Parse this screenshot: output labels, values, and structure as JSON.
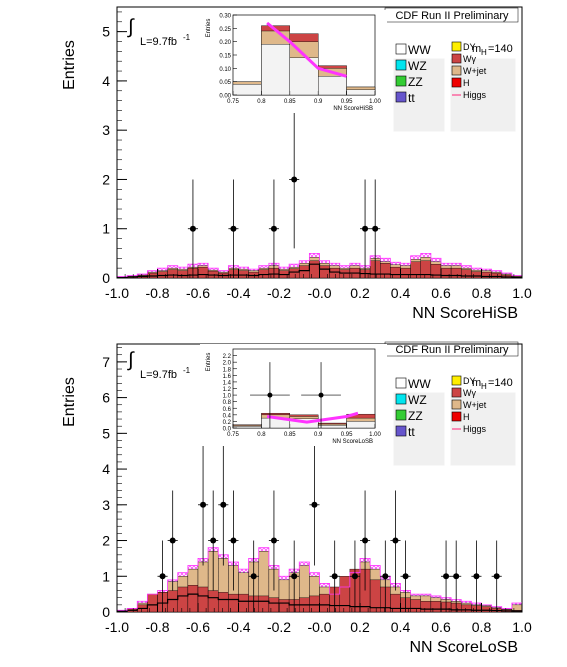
{
  "chart_data": [
    {
      "type": "bar",
      "panel": "top",
      "title": "CDF Run II Preliminary",
      "xlabel": "NN ScoreHiSB",
      "ylabel": "Entries",
      "xlim": [
        -1.0,
        1.0
      ],
      "ylim": [
        0,
        5.5
      ],
      "xticks": [
        "-1.0",
        "-0.8",
        "-0.6",
        "-0.4",
        "-0.2",
        "-0.0",
        "0.2",
        "0.4",
        "0.6",
        "0.8",
        "1.0"
      ],
      "yticks": [
        "0",
        "1",
        "2",
        "3",
        "4",
        "5"
      ],
      "lumi_label": "L=9.7fb",
      "lumi_exp": "-1",
      "mass_label": "m",
      "mass_sub": "H",
      "mass_value": "=140",
      "grid": false,
      "legend_position": "top-right",
      "legend_left": [
        "WW",
        "WZ",
        "ZZ",
        "tt"
      ],
      "legend_right": [
        "DY",
        "Wγ",
        "W+jet",
        "H",
        "Higgs"
      ],
      "colors": {
        "WW": "#ffffff",
        "WZ": "#00e5ee",
        "ZZ": "#33cc33",
        "tt": "#6655cc",
        "DY": "#ffee00",
        "Wg": "#cc4444",
        "Wjet": "#dfb88a",
        "H": "#ee0000",
        "Higgs": "#ff2277",
        "signal": "#ff33ff"
      },
      "bins": 40,
      "total": [
        0.03,
        0.05,
        0.08,
        0.15,
        0.2,
        0.25,
        0.22,
        0.28,
        0.3,
        0.2,
        0.15,
        0.25,
        0.22,
        0.18,
        0.25,
        0.3,
        0.22,
        0.28,
        0.35,
        0.5,
        0.35,
        0.3,
        0.25,
        0.3,
        0.25,
        0.45,
        0.4,
        0.32,
        0.3,
        0.45,
        0.5,
        0.4,
        0.3,
        0.3,
        0.25,
        0.2,
        0.18,
        0.15,
        0.1,
        0.05
      ],
      "wjet_top": [
        0.02,
        0.04,
        0.06,
        0.12,
        0.15,
        0.2,
        0.18,
        0.22,
        0.25,
        0.16,
        0.12,
        0.2,
        0.18,
        0.15,
        0.2,
        0.25,
        0.18,
        0.22,
        0.3,
        0.42,
        0.3,
        0.25,
        0.2,
        0.25,
        0.2,
        0.4,
        0.33,
        0.27,
        0.25,
        0.38,
        0.42,
        0.33,
        0.25,
        0.25,
        0.2,
        0.16,
        0.15,
        0.12,
        0.08,
        0.04
      ],
      "wg_top": [
        0.01,
        0.03,
        0.05,
        0.1,
        0.13,
        0.17,
        0.15,
        0.2,
        0.22,
        0.14,
        0.1,
        0.17,
        0.15,
        0.12,
        0.17,
        0.2,
        0.15,
        0.19,
        0.25,
        0.35,
        0.25,
        0.2,
        0.17,
        0.2,
        0.17,
        0.35,
        0.3,
        0.22,
        0.2,
        0.33,
        0.35,
        0.28,
        0.2,
        0.2,
        0.17,
        0.13,
        0.12,
        0.1,
        0.06,
        0.03
      ],
      "ww_line": [
        0.01,
        0.02,
        0.03,
        0.04,
        0.05,
        0.06,
        0.05,
        0.06,
        0.07,
        0.06,
        0.05,
        0.06,
        0.06,
        0.05,
        0.07,
        0.08,
        0.07,
        0.12,
        0.15,
        0.28,
        0.18,
        0.12,
        0.1,
        0.1,
        0.09,
        0.08,
        0.08,
        0.07,
        0.07,
        0.07,
        0.07,
        0.06,
        0.05,
        0.05,
        0.04,
        0.04,
        0.03,
        0.03,
        0.02,
        0.01
      ],
      "data_points": [
        {
          "x": -0.625,
          "y": 1,
          "err": 1.0
        },
        {
          "x": -0.425,
          "y": 1,
          "err": 1.0
        },
        {
          "x": -0.225,
          "y": 1,
          "err": 1.0
        },
        {
          "x": -0.125,
          "y": 2,
          "err": 1.4
        },
        {
          "x": 0.225,
          "y": 1,
          "err": 1.0
        },
        {
          "x": 0.275,
          "y": 1,
          "err": 1.0
        }
      ],
      "inset": {
        "xlabel": "NN ScoreHiSB",
        "ylabel": "Entries",
        "xlim": [
          0.75,
          1.0
        ],
        "ylim": [
          0,
          0.3
        ],
        "xticks": [
          "0.75",
          "0.8",
          "0.85",
          "0.9",
          "0.95",
          "1.00"
        ],
        "yticks": [
          "0.00",
          "0.05",
          "0.10",
          "0.15",
          "0.20",
          "0.25",
          "0.30"
        ],
        "bins_x": [
          0.75,
          0.8,
          0.85,
          0.9,
          0.95,
          1.0
        ],
        "total": [
          0.05,
          0.26,
          0.23,
          0.11,
          0.03
        ],
        "red_bottom": [
          0.05,
          0.24,
          0.2,
          0.1,
          0.03
        ],
        "gray_top": [
          0.04,
          0.19,
          0.14,
          0.07,
          0.02
        ],
        "signal_line": [
          [
            0.81,
            0.27
          ],
          [
            0.85,
            0.2
          ],
          [
            0.9,
            0.1
          ],
          [
            0.95,
            0.07
          ]
        ],
        "data_points": []
      }
    },
    {
      "type": "bar",
      "panel": "bottom",
      "title": "CDF Run II Preliminary",
      "xlabel": "NN ScoreLoSB",
      "ylabel": "Entries",
      "xlim": [
        -1.0,
        1.0
      ],
      "ylim": [
        0,
        7.5
      ],
      "xticks": [
        "-1.0",
        "-0.8",
        "-0.6",
        "-0.4",
        "-0.2",
        "-0.0",
        "0.2",
        "0.4",
        "0.6",
        "0.8",
        "1.0"
      ],
      "yticks": [
        "0",
        "1",
        "2",
        "3",
        "4",
        "5",
        "6",
        "7"
      ],
      "lumi_label": "L=9.7fb",
      "lumi_exp": "-1",
      "mass_label": "m",
      "mass_sub": "H",
      "mass_value": "=140",
      "grid": false,
      "legend_position": "top-right",
      "legend_left": [
        "WW",
        "WZ",
        "ZZ",
        "tt"
      ],
      "legend_right": [
        "DY",
        "Wγ",
        "W+jet",
        "H",
        "Higgs"
      ],
      "colors": {
        "WW": "#ffffff",
        "WZ": "#00e5ee",
        "ZZ": "#33cc33",
        "tt": "#6655cc",
        "DY": "#ffee00",
        "Wg": "#cc4444",
        "Wjet": "#dfb88a",
        "H": "#ee0000",
        "Higgs": "#ff2277",
        "signal": "#ff33ff"
      },
      "bins": 40,
      "total": [
        0.05,
        0.1,
        0.3,
        0.5,
        0.6,
        0.9,
        1.1,
        1.3,
        1.5,
        1.8,
        1.6,
        1.4,
        1.2,
        1.5,
        1.8,
        1.3,
        1.0,
        1.2,
        1.4,
        1.1,
        0.8,
        0.5,
        0.7,
        1.1,
        1.5,
        1.3,
        1.0,
        0.8,
        0.6,
        0.5,
        0.5,
        0.45,
        0.4,
        0.35,
        0.3,
        0.25,
        0.2,
        0.15,
        0.1,
        0.25
      ],
      "wjet_top": [
        0.04,
        0.08,
        0.25,
        0.45,
        0.55,
        0.85,
        1.0,
        1.2,
        1.4,
        1.7,
        1.5,
        1.3,
        1.1,
        1.4,
        1.7,
        1.2,
        0.9,
        1.1,
        1.3,
        1.0,
        0.7,
        0.45,
        0.6,
        1.0,
        1.4,
        1.2,
        0.9,
        0.7,
        0.55,
        0.45,
        0.45,
        0.4,
        0.35,
        0.3,
        0.25,
        0.2,
        0.18,
        0.12,
        0.08,
        0.2
      ],
      "wg_top": [
        0.03,
        0.1,
        0.2,
        0.5,
        0.55,
        0.6,
        0.7,
        0.75,
        0.7,
        0.6,
        0.55,
        0.5,
        0.5,
        0.45,
        0.45,
        0.4,
        0.35,
        0.35,
        0.4,
        0.45,
        0.5,
        0.7,
        1.0,
        1.2,
        1.2,
        0.9,
        0.7,
        0.5,
        0.4,
        0.35,
        0.3,
        0.3,
        0.28,
        0.25,
        0.2,
        0.18,
        0.15,
        0.1,
        0.06,
        0.05
      ],
      "ww_line": [
        0.02,
        0.05,
        0.1,
        0.2,
        0.25,
        0.35,
        0.45,
        0.5,
        0.45,
        0.4,
        0.35,
        0.35,
        0.3,
        0.3,
        0.3,
        0.25,
        0.25,
        0.2,
        0.2,
        0.2,
        0.2,
        0.18,
        0.18,
        0.15,
        0.15,
        0.12,
        0.12,
        0.1,
        0.1,
        0.1,
        0.08,
        0.08,
        0.08,
        0.06,
        0.06,
        0.05,
        0.05,
        0.04,
        0.03,
        0.02
      ],
      "data_points": [
        {
          "x": -0.775,
          "y": 1,
          "err": 1.0
        },
        {
          "x": -0.725,
          "y": 2,
          "err": 1.4
        },
        {
          "x": -0.575,
          "y": 3,
          "err": 1.7
        },
        {
          "x": -0.525,
          "y": 2,
          "err": 1.4
        },
        {
          "x": -0.475,
          "y": 3,
          "err": 1.7
        },
        {
          "x": -0.425,
          "y": 2,
          "err": 1.4
        },
        {
          "x": -0.325,
          "y": 1,
          "err": 1.0
        },
        {
          "x": -0.225,
          "y": 2,
          "err": 1.4
        },
        {
          "x": -0.125,
          "y": 1,
          "err": 1.0
        },
        {
          "x": -0.025,
          "y": 3,
          "err": 1.7
        },
        {
          "x": 0.075,
          "y": 1,
          "err": 1.0
        },
        {
          "x": 0.175,
          "y": 1,
          "err": 1.0
        },
        {
          "x": 0.225,
          "y": 2,
          "err": 1.4
        },
        {
          "x": 0.325,
          "y": 1,
          "err": 1.0
        },
        {
          "x": 0.375,
          "y": 2,
          "err": 1.4
        },
        {
          "x": 0.425,
          "y": 1,
          "err": 1.0
        },
        {
          "x": 0.625,
          "y": 1,
          "err": 1.0
        },
        {
          "x": 0.675,
          "y": 1,
          "err": 1.0
        },
        {
          "x": 0.775,
          "y": 1,
          "err": 1.0
        },
        {
          "x": 0.875,
          "y": 1,
          "err": 1.0
        }
      ],
      "inset": {
        "xlabel": "NN ScoreLoSB",
        "ylabel": "Entries",
        "xlim": [
          0.75,
          1.0
        ],
        "ylim": [
          0,
          2.4
        ],
        "xticks": [
          "0.75",
          "0.8",
          "0.85",
          "0.9",
          "0.95",
          "1.00"
        ],
        "yticks": [
          "0.0",
          "0.2",
          "0.4",
          "0.6",
          "0.8",
          "1.0",
          "1.2",
          "1.4",
          "1.6",
          "1.8",
          "2.0",
          "2.2"
        ],
        "bins_x": [
          0.75,
          0.8,
          0.85,
          0.9,
          0.95,
          1.0
        ],
        "total": [
          0.1,
          0.45,
          0.4,
          0.15,
          0.42
        ],
        "red_bottom": [
          0.08,
          0.4,
          0.35,
          0.12,
          0.3
        ],
        "gray_top": [
          0.05,
          0.3,
          0.28,
          0.08,
          0.2
        ],
        "signal_line": [
          [
            0.81,
            0.35
          ],
          [
            0.88,
            0.18
          ],
          [
            0.95,
            0.35
          ],
          [
            0.97,
            0.45
          ]
        ],
        "data_points": [
          {
            "x": 0.815,
            "y": 1.0,
            "err": 1.0,
            "xerr": 0.035
          },
          {
            "x": 0.905,
            "y": 1.0,
            "err": 1.0,
            "xerr": 0.035
          }
        ]
      }
    }
  ]
}
